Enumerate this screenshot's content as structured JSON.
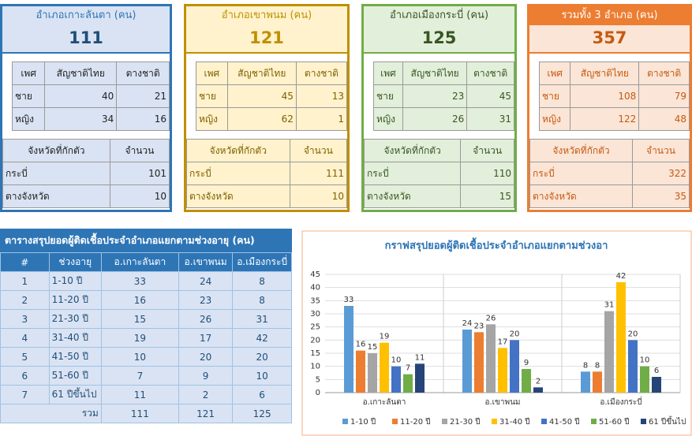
{
  "panels": [
    {
      "title": "อำเภอเกาะลันตา (คน)",
      "total": 111,
      "gender_table": {
        "header": [
          "เพศ",
          "สัญชาติไทย",
          "ตางชาติ"
        ],
        "rows": [
          [
            "ชาย",
            40,
            21
          ],
          [
            "หญิง",
            34,
            16
          ]
        ]
      },
      "province_table": {
        "header": [
          "จังหวัดที่กักตัว",
          "จำนวน"
        ],
        "rows": [
          [
            "กระบี่",
            101
          ],
          [
            "ตางจังหวัด",
            10
          ]
        ]
      }
    },
    {
      "title": "อำเภอเขาพนม (คน)",
      "total": 121,
      "gender_table": {
        "header": [
          "เพศ",
          "สัญชาติไทย",
          "ตางชาติ"
        ],
        "rows": [
          [
            "ชาย",
            45,
            13
          ],
          [
            "หญิง",
            62,
            1
          ]
        ]
      },
      "province_table": {
        "header": [
          "จังหวัดที่กักตัว",
          "จำนวน"
        ],
        "rows": [
          [
            "กระบี่",
            111
          ],
          [
            "ตางจังหวัด",
            10
          ]
        ]
      }
    },
    {
      "title": "อำเภอเมืองกระบี่ (คน)",
      "total": 125,
      "gender_table": {
        "header": [
          "เพศ",
          "สัญชาติไทย",
          "ตางชาติ"
        ],
        "rows": [
          [
            "ชาย",
            23,
            45
          ],
          [
            "หญิง",
            26,
            31
          ]
        ]
      },
      "province_table": {
        "header": [
          "จังหวัดที่กักตัว",
          "จำนวน"
        ],
        "rows": [
          [
            "กระบี่",
            110
          ],
          [
            "ตางจังหวัด",
            15
          ]
        ]
      }
    },
    {
      "title": "รวมทั้ง 3 อำเภอ (คน)",
      "total": 357,
      "gender_table": {
        "header": [
          "เพศ",
          "สัญชาติไทย",
          "ตางชาติ"
        ],
        "rows": [
          [
            "ชาย",
            108,
            79
          ],
          [
            "หญิง",
            122,
            48
          ]
        ]
      },
      "province_table": {
        "header": [
          "จังหวัดที่กักตัว",
          "จำนวน"
        ],
        "rows": [
          [
            "กระบี่",
            322
          ],
          [
            "ตางจังหวัด",
            35
          ]
        ]
      }
    }
  ],
  "table": {
    "title": "ตารางสรุปยอดผู้ติดเชื้อประจำอำเภอแยกตามช่วงอายุ (คน)",
    "header": [
      "#",
      "ช่วงอายุ",
      "อ.เกาะลันตา",
      "อ.เขาพนม",
      "อ.เมืองกระบี่"
    ],
    "rows": [
      [
        1,
        "1-10 ปี",
        33,
        24,
        8
      ],
      [
        2,
        "11-20 ปี",
        16,
        23,
        8
      ],
      [
        3,
        "21-30 ปี",
        15,
        26,
        31
      ],
      [
        4,
        "31-40 ปี",
        19,
        17,
        42
      ],
      [
        5,
        "41-50 ปี",
        10,
        20,
        20
      ],
      [
        6,
        "51-60 ปี",
        7,
        9,
        10
      ],
      [
        7,
        "61 ปีขึ้นไป",
        11,
        2,
        6
      ]
    ],
    "total_row": [
      "รวม",
      111,
      121,
      125
    ]
  },
  "chart_data": {
    "type": "bar",
    "title": "กราฟสรุปยอดผู้ติดเชื้อประจำอำเภอแยกตามช่วงอา",
    "categories": [
      "อ.เกาะลันตา",
      "อ.เขาพนม",
      "อ.เมืองกระบี่"
    ],
    "series": [
      {
        "name": "1-10 ปี",
        "color": "#5b9bd5",
        "values": [
          33,
          24,
          8
        ]
      },
      {
        "name": "11-20 ปี",
        "color": "#ed7d31",
        "values": [
          16,
          23,
          8
        ]
      },
      {
        "name": "21-30 ปี",
        "color": "#a5a5a5",
        "values": [
          15,
          26,
          31
        ]
      },
      {
        "name": "31-40 ปี",
        "color": "#ffc000",
        "values": [
          19,
          17,
          42
        ]
      },
      {
        "name": "41-50 ปี",
        "color": "#4472c4",
        "values": [
          10,
          20,
          20
        ]
      },
      {
        "name": "51-60 ปี",
        "color": "#70ad47",
        "values": [
          7,
          9,
          10
        ]
      },
      {
        "name": "61 ปีขึ้นไป",
        "color": "#264478",
        "values": [
          11,
          2,
          6
        ]
      }
    ],
    "ylim": [
      0,
      45
    ],
    "yticks": [
      0,
      5,
      10,
      15,
      20,
      25,
      30,
      35,
      40,
      45
    ],
    "grid": true,
    "legend": "bottom"
  }
}
